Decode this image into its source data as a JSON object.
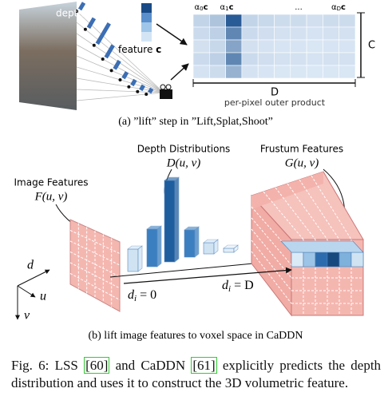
{
  "figure": {
    "panel_a": {
      "depth_label": "depth distribution α",
      "feature_label": "feature",
      "feature_symbol": "c",
      "columns": [
        {
          "base": "α",
          "sub": "0",
          "tail": "c"
        },
        {
          "base": "α",
          "sub": "1",
          "tail": "c"
        },
        {
          "base": "...",
          "sub": "",
          "tail": ""
        },
        {
          "base": "α",
          "sub": "D",
          "tail": "c"
        }
      ],
      "c_label": "C",
      "d_label": "D",
      "product_label": "per-pixel outer product",
      "caption": "(a) ”lift” step in ”Lift,Splat,Shoot”"
    },
    "panel_b": {
      "depth_title": "Depth Distributions",
      "depth_symbol": "D(u, v)",
      "frustum_title": "Frustum Features",
      "frustum_symbol": "G(u, v)",
      "image_title": "Image Features",
      "image_symbol": "F(u, v)",
      "axis_d": "d",
      "axis_u": "u",
      "axis_v": "v",
      "near": {
        "base": "d",
        "sub": "i",
        "tail": " = 0"
      },
      "far": {
        "base": "d",
        "sub": "i",
        "tail": " = D"
      },
      "caption": "(b) lift image features to voxel space in CaDDN"
    }
  },
  "caption": {
    "label": "Fig. 6:",
    "text_1": "LSS",
    "cite_1": "[60]",
    "text_2": "and CaDDN",
    "cite_2": "[61]",
    "text_3": "explicitly predicts the depth distribution and uses it to construct the 3D volumetric feature."
  }
}
